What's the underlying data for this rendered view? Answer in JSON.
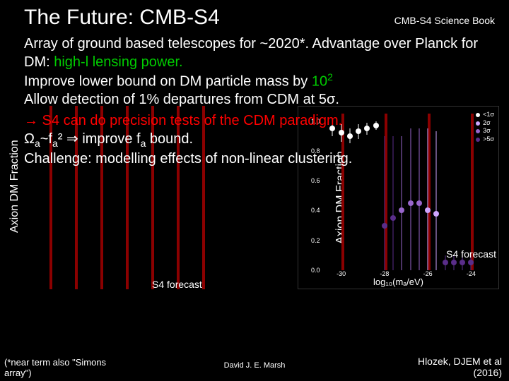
{
  "title": "The Future: CMB-S4",
  "subtitle_right": "CMB-S4 Science Book",
  "para1_a": "Array of ground based telescopes for ~2020*. Advantage over Planck for DM: ",
  "para1_b": "high-l lensing power.",
  "bullet1_a": "Improve lower bound on DM particle mass by ",
  "bullet1_b": "10",
  "bullet1_c": "2",
  "bullet2": "Allow detection of 1% departures from CDM at 5σ.",
  "arrow_line": "→ S4 can do precision tests of the CDM paradigm.",
  "omega_line_a": "Ω",
  "omega_line_b": "a",
  "omega_line_c": "~f",
  "omega_line_d": "a",
  "omega_line_e": "² ⇒ improve f",
  "omega_line_f": "a",
  "omega_line_g": " bound.",
  "challenge": "Challenge: modelling effects of non-linear clustering.",
  "y_label_left": "Axion DM Fraction",
  "forecast_left_label": "S4 forecast",
  "forecast_right_label": "S4 forecast",
  "chart_right": {
    "y_label": "Axion DM Fraction",
    "x_label": "log₁₀(mₐ/eV)",
    "x_ticks": [
      -30,
      -28,
      -26,
      -24
    ],
    "y_ticks": [
      0.0,
      0.2,
      0.4,
      0.6,
      0.8,
      1.0
    ],
    "legend": [
      {
        "label": "<1σ",
        "color": "#ffffff"
      },
      {
        "label": "2σ",
        "color": "#cfa6ff"
      },
      {
        "label": "3σ",
        "color": "#9966cc"
      },
      {
        "label": ">5σ",
        "color": "#5a2d8a"
      }
    ],
    "vlines_x": [
      -30,
      -28,
      -26,
      -24
    ],
    "points": [
      {
        "x": -30.4,
        "y": 0.95,
        "color": "#ffffff",
        "err": 0.05
      },
      {
        "x": -30.0,
        "y": 0.92,
        "color": "#ffffff",
        "err": 0.06
      },
      {
        "x": -29.6,
        "y": 0.9,
        "color": "#ffffff",
        "err": 0.05
      },
      {
        "x": -29.2,
        "y": 0.93,
        "color": "#ffffff",
        "err": 0.05
      },
      {
        "x": -28.8,
        "y": 0.95,
        "color": "#ffffff",
        "err": 0.04
      },
      {
        "x": -28.4,
        "y": 0.97,
        "color": "#ffffff",
        "err": 0.03
      },
      {
        "x": -28.0,
        "y": 0.3,
        "color": "#5a2d8a",
        "err": 0.6
      },
      {
        "x": -27.6,
        "y": 0.35,
        "color": "#5a2d8a",
        "err": 0.55
      },
      {
        "x": -27.2,
        "y": 0.4,
        "color": "#9966cc",
        "err": 0.5
      },
      {
        "x": -26.8,
        "y": 0.45,
        "color": "#9966cc",
        "err": 0.5
      },
      {
        "x": -26.4,
        "y": 0.45,
        "color": "#9966cc",
        "err": 0.5
      },
      {
        "x": -26.0,
        "y": 0.4,
        "color": "#cfa6ff",
        "err": 0.55
      },
      {
        "x": -25.6,
        "y": 0.38,
        "color": "#cfa6ff",
        "err": 0.55
      },
      {
        "x": -25.2,
        "y": 0.05,
        "color": "#5a2d8a",
        "err": 0.05
      },
      {
        "x": -24.8,
        "y": 0.05,
        "color": "#5a2d8a",
        "err": 0.05
      },
      {
        "x": -24.4,
        "y": 0.05,
        "color": "#5a2d8a",
        "err": 0.05
      },
      {
        "x": -24.0,
        "y": 0.05,
        "color": "#5a2d8a",
        "err": 0.05
      }
    ],
    "xlim": [
      -31,
      -23
    ],
    "ylim": [
      0,
      1.05
    ]
  },
  "footer_left_a": "(*near term also \"Simons",
  "footer_left_b": "array\")",
  "footer_center": "David J. E. Marsh",
  "footer_right_a": "Hlozek, DJEM et al",
  "footer_right_b": "(2016)",
  "colors": {
    "green": "#00cc00",
    "red": "#ff0000",
    "bg": "#000000",
    "vline": "#8b0000"
  }
}
